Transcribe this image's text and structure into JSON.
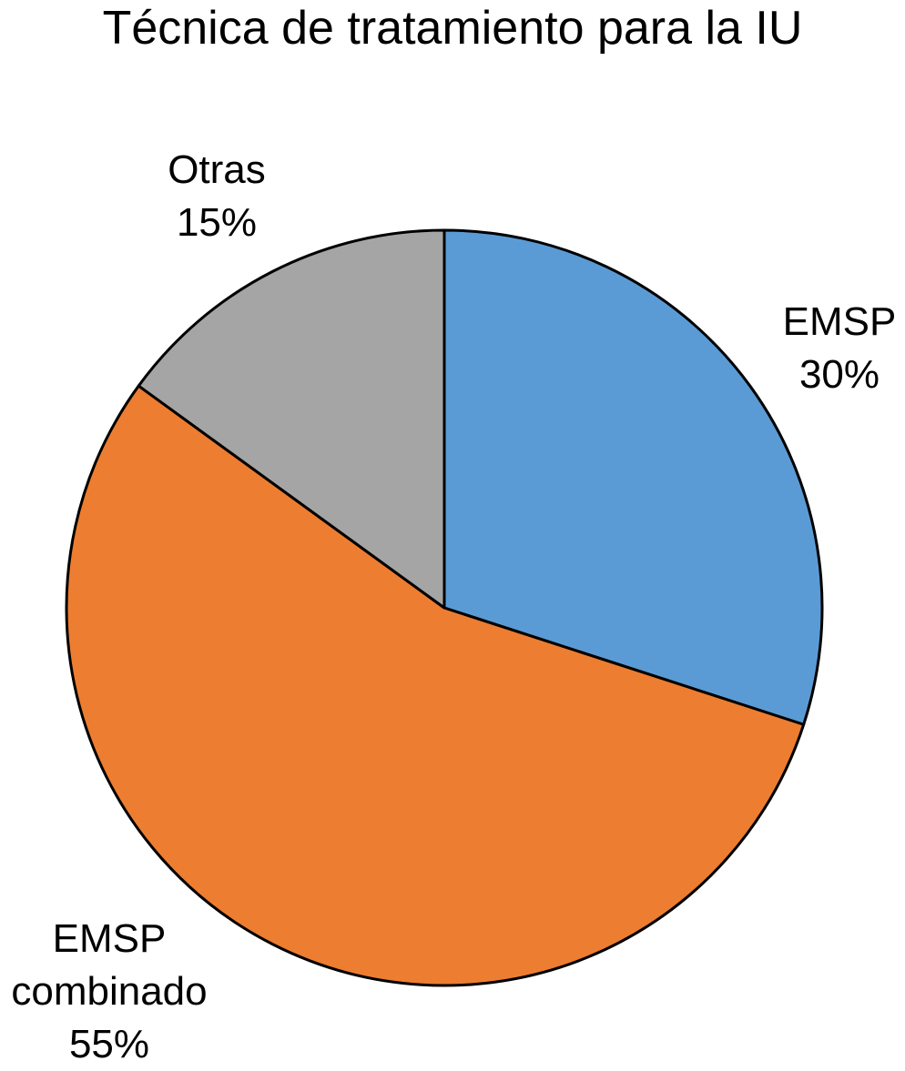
{
  "chart_data": {
    "type": "pie",
    "title": "Técnica de tratamiento para la IU",
    "categories": [
      "EMSP",
      "EMSP combinado",
      "Otras"
    ],
    "values": [
      30,
      55,
      15
    ],
    "value_labels": [
      "30%",
      "55%",
      "15%"
    ],
    "colors": [
      "#5b9bd5",
      "#ed7d31",
      "#a5a5a5"
    ]
  }
}
